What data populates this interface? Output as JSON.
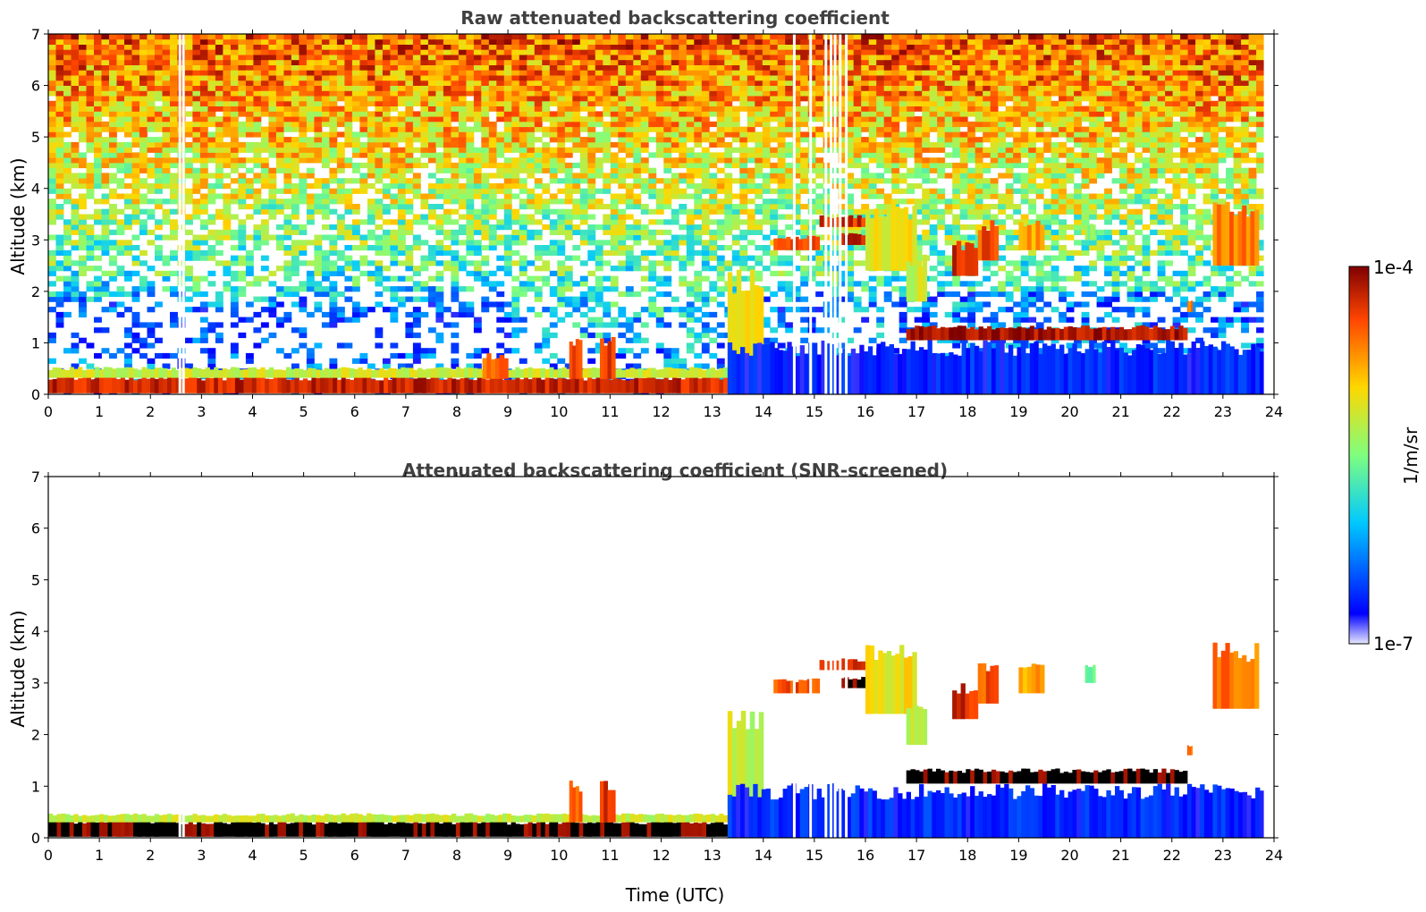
{
  "chart_data": [
    {
      "type": "heatmap",
      "title": "Raw attenuated backscattering coefficient",
      "ylabel": "Altitude (km)",
      "xlabel": "",
      "xlim": [
        0,
        24
      ],
      "ylim": [
        0,
        7
      ],
      "xticks": [
        "0",
        "1",
        "2",
        "3",
        "4",
        "5",
        "6",
        "7",
        "8",
        "9",
        "10",
        "11",
        "12",
        "13",
        "14",
        "15",
        "16",
        "17",
        "18",
        "19",
        "20",
        "21",
        "22",
        "23",
        "24"
      ],
      "yticks": [
        "0",
        "1",
        "2",
        "3",
        "4",
        "5",
        "6",
        "7"
      ],
      "data_end_time": 23.8,
      "gap_times": [
        2.55,
        2.62,
        14.58,
        14.9,
        15.2,
        15.3,
        15.38,
        15.48,
        15.6
      ],
      "noise": true,
      "layers": [
        {
          "t0": 0.0,
          "t1": 13.3,
          "z0": 0.02,
          "z1": 0.32,
          "level": 0.92
        },
        {
          "t0": 0.0,
          "t1": 13.3,
          "z0": 0.32,
          "z1": 0.5,
          "level": 0.6
        },
        {
          "t0": 8.5,
          "t1": 9.0,
          "z0": 0.3,
          "z1": 0.75,
          "level": 0.8
        },
        {
          "t0": 10.2,
          "t1": 10.45,
          "z0": 0.3,
          "z1": 1.0,
          "level": 0.85
        },
        {
          "t0": 10.8,
          "t1": 11.1,
          "z0": 0.3,
          "z1": 1.0,
          "level": 0.88
        },
        {
          "t0": 13.3,
          "t1": 14.0,
          "z0": 0.5,
          "z1": 2.2,
          "level": 0.7
        },
        {
          "t0": 13.3,
          "t1": 23.8,
          "z0": 0.0,
          "z1": 0.9,
          "level": 0.12
        },
        {
          "t0": 14.2,
          "t1": 15.1,
          "z0": 2.8,
          "z1": 3.05,
          "level": 0.85
        },
        {
          "t0": 15.1,
          "t1": 16.0,
          "z0": 3.25,
          "z1": 3.45,
          "level": 0.9
        },
        {
          "t0": 15.5,
          "t1": 16.0,
          "z0": 2.9,
          "z1": 3.1,
          "level": 0.95
        },
        {
          "t0": 16.0,
          "t1": 17.0,
          "z0": 2.4,
          "z1": 3.6,
          "level": 0.65
        },
        {
          "t0": 16.8,
          "t1": 17.2,
          "z0": 1.8,
          "z1": 2.6,
          "level": 0.6
        },
        {
          "t0": 17.7,
          "t1": 18.2,
          "z0": 2.3,
          "z1": 2.9,
          "level": 0.9
        },
        {
          "t0": 18.2,
          "t1": 18.6,
          "z0": 2.6,
          "z1": 3.3,
          "level": 0.85
        },
        {
          "t0": 19.0,
          "t1": 19.5,
          "z0": 2.8,
          "z1": 3.3,
          "level": 0.75
        },
        {
          "t0": 16.8,
          "t1": 22.3,
          "z0": 1.05,
          "z1": 1.3,
          "level": 0.95
        },
        {
          "t0": 22.8,
          "t1": 23.7,
          "z0": 2.5,
          "z1": 3.6,
          "level": 0.8
        },
        {
          "t0": 20.3,
          "t1": 20.5,
          "z0": 3.0,
          "z1": 3.3,
          "level": 0.5
        },
        {
          "t0": 22.3,
          "t1": 22.4,
          "z0": 1.6,
          "z1": 1.8,
          "level": 0.8
        }
      ]
    },
    {
      "type": "heatmap",
      "title": "Attenuated backscattering coefficient (SNR-screened)",
      "ylabel": "Altitude (km)",
      "xlabel": "Time (UTC)",
      "xlim": [
        0,
        24
      ],
      "ylim": [
        0,
        7
      ],
      "xticks": [
        "0",
        "1",
        "2",
        "3",
        "4",
        "5",
        "6",
        "7",
        "8",
        "9",
        "10",
        "11",
        "12",
        "13",
        "14",
        "15",
        "16",
        "17",
        "18",
        "19",
        "20",
        "21",
        "22",
        "23",
        "24"
      ],
      "yticks": [
        "0",
        "1",
        "2",
        "3",
        "4",
        "5",
        "6",
        "7"
      ],
      "data_end_time": 23.8,
      "gap_times": [
        2.55,
        2.62,
        14.58,
        14.9,
        15.2,
        15.3,
        15.38,
        15.48,
        15.6
      ],
      "noise": false,
      "layers": [
        {
          "t0": 0.0,
          "t1": 13.3,
          "z0": 0.02,
          "z1": 0.3,
          "level": 1.0
        },
        {
          "t0": 0.0,
          "t1": 13.3,
          "z0": 0.3,
          "z1": 0.45,
          "level": 0.6
        },
        {
          "t0": 10.2,
          "t1": 10.45,
          "z0": 0.3,
          "z1": 1.0,
          "level": 0.85
        },
        {
          "t0": 10.8,
          "t1": 11.1,
          "z0": 0.3,
          "z1": 1.0,
          "level": 0.88
        },
        {
          "t0": 13.3,
          "t1": 14.0,
          "z0": 0.5,
          "z1": 2.2,
          "level": 0.6
        },
        {
          "t0": 13.3,
          "t1": 23.8,
          "z0": 0.0,
          "z1": 0.9,
          "level": 0.12
        },
        {
          "t0": 14.2,
          "t1": 15.1,
          "z0": 2.8,
          "z1": 3.05,
          "level": 0.85
        },
        {
          "t0": 15.1,
          "t1": 16.0,
          "z0": 3.25,
          "z1": 3.45,
          "level": 0.9
        },
        {
          "t0": 15.5,
          "t1": 16.0,
          "z0": 2.9,
          "z1": 3.1,
          "level": 1.0
        },
        {
          "t0": 16.0,
          "t1": 17.0,
          "z0": 2.4,
          "z1": 3.6,
          "level": 0.65
        },
        {
          "t0": 16.8,
          "t1": 17.2,
          "z0": 1.8,
          "z1": 2.6,
          "level": 0.6
        },
        {
          "t0": 17.7,
          "t1": 18.2,
          "z0": 2.3,
          "z1": 2.9,
          "level": 0.9
        },
        {
          "t0": 18.2,
          "t1": 18.6,
          "z0": 2.6,
          "z1": 3.3,
          "level": 0.85
        },
        {
          "t0": 19.0,
          "t1": 19.5,
          "z0": 2.8,
          "z1": 3.3,
          "level": 0.75
        },
        {
          "t0": 16.8,
          "t1": 22.3,
          "z0": 1.05,
          "z1": 1.3,
          "level": 1.0
        },
        {
          "t0": 22.8,
          "t1": 23.7,
          "z0": 2.5,
          "z1": 3.6,
          "level": 0.8
        },
        {
          "t0": 20.3,
          "t1": 20.5,
          "z0": 3.0,
          "z1": 3.3,
          "level": 0.5
        },
        {
          "t0": 22.3,
          "t1": 22.4,
          "z0": 1.6,
          "z1": 1.8,
          "level": 0.8
        }
      ]
    }
  ],
  "colorbar": {
    "label": "1/m/sr",
    "max_label": "1e-4",
    "min_label": "1e-7",
    "colors": [
      "#e8e8ff",
      "#0000ff",
      "#00c8ff",
      "#7fff7f",
      "#ffd700",
      "#ff4500",
      "#7f0000"
    ],
    "scale": "log"
  }
}
